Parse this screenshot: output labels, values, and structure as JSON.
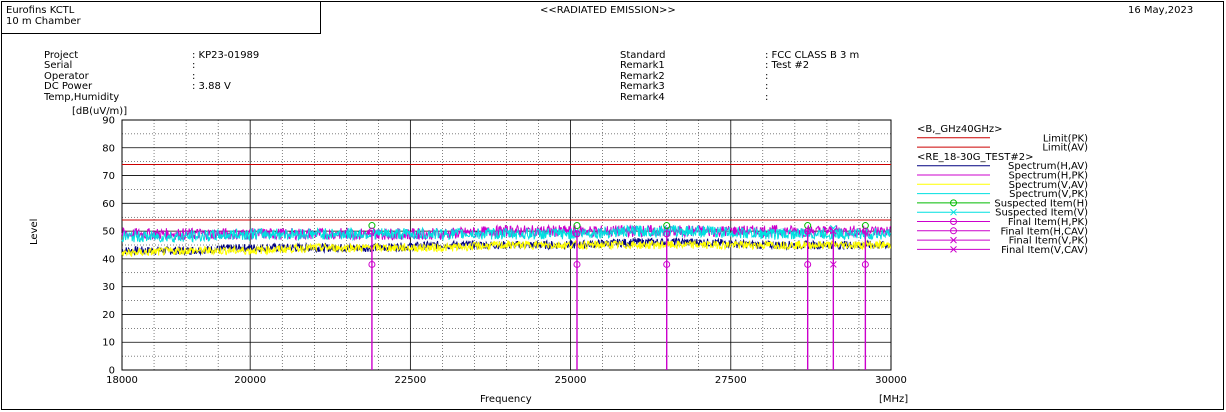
{
  "header": {
    "company": "Eurofins KCTL",
    "site": "10 m Chamber",
    "title": "<<RADIATED EMISSION>>",
    "date": "16 May,2023"
  },
  "info": {
    "left": [
      {
        "label": "Project",
        "value": ": KP23-01989"
      },
      {
        "label": "Serial",
        "value": ":"
      },
      {
        "label": "Operator",
        "value": ":"
      },
      {
        "label": "DC Power",
        "value": ": 3.88 V"
      },
      {
        "label": "Temp,Humidity",
        "value": ""
      }
    ],
    "right": [
      {
        "label": "Standard",
        "value": ": FCC CLASS B 3 m"
      },
      {
        "label": "Remark1",
        "value": ": Test #2"
      },
      {
        "label": "Remark2",
        "value": ":"
      },
      {
        "label": "Remark3",
        "value": ":"
      },
      {
        "label": "Remark4",
        "value": ":"
      }
    ]
  },
  "chart_data": {
    "type": "line",
    "ylabel": "Level",
    "yunit": "[dB(uV/m)]",
    "xlabel": "Frequency",
    "xunit": "[MHz]",
    "xlim": [
      18000,
      30000
    ],
    "ylim": [
      0,
      90
    ],
    "xticks": [
      18000,
      20000,
      22500,
      25000,
      27500,
      30000
    ],
    "yticks": [
      0,
      10,
      20,
      30,
      40,
      50,
      60,
      70,
      80,
      90
    ],
    "limits": [
      {
        "name": "Limit(PK)",
        "value": 74,
        "color": "#cc0000"
      },
      {
        "name": "Limit(AV)",
        "value": 54,
        "color": "#cc0000"
      }
    ],
    "legend_group1": "<B,_GHz40GHz>",
    "legend_group2": "<RE_18-30G_TEST#2>",
    "spectra": [
      {
        "name": "Spectrum(H,AV)",
        "color": "#000080",
        "points": [
          [
            18000,
            43
          ],
          [
            19000,
            43
          ],
          [
            20000,
            44
          ],
          [
            21000,
            44
          ],
          [
            22000,
            44
          ],
          [
            23000,
            45
          ],
          [
            24000,
            45
          ],
          [
            25000,
            45
          ],
          [
            26000,
            46
          ],
          [
            27000,
            46
          ],
          [
            28000,
            45
          ],
          [
            29000,
            45
          ],
          [
            30000,
            45
          ]
        ]
      },
      {
        "name": "Spectrum(H,PK)",
        "color": "#cc00cc",
        "points": [
          [
            18000,
            49
          ],
          [
            19000,
            49
          ],
          [
            20000,
            49
          ],
          [
            21000,
            49
          ],
          [
            22000,
            49
          ],
          [
            23000,
            49
          ],
          [
            24000,
            50
          ],
          [
            25000,
            50
          ],
          [
            26000,
            50
          ],
          [
            27000,
            50
          ],
          [
            28000,
            50
          ],
          [
            29000,
            50
          ],
          [
            30000,
            50
          ]
        ]
      },
      {
        "name": "Spectrum(V,AV)",
        "color": "#ffff00",
        "points": [
          [
            18000,
            42
          ],
          [
            19000,
            43
          ],
          [
            20000,
            43
          ],
          [
            21000,
            44
          ],
          [
            22000,
            44
          ],
          [
            23000,
            44
          ],
          [
            24000,
            45
          ],
          [
            25000,
            45
          ],
          [
            26000,
            45
          ],
          [
            27000,
            45
          ],
          [
            28000,
            45
          ],
          [
            29000,
            45
          ],
          [
            30000,
            45
          ]
        ]
      },
      {
        "name": "Spectrum(V,PK)",
        "color": "#00e0e0",
        "points": [
          [
            18000,
            48
          ],
          [
            19000,
            48
          ],
          [
            20000,
            49
          ],
          [
            21000,
            49
          ],
          [
            22000,
            49
          ],
          [
            23000,
            49
          ],
          [
            24000,
            49
          ],
          [
            25000,
            49
          ],
          [
            26000,
            50
          ],
          [
            27000,
            50
          ],
          [
            28000,
            49
          ],
          [
            29000,
            49
          ],
          [
            30000,
            49
          ]
        ]
      }
    ],
    "spikes": [
      21900,
      25100,
      26500,
      28700,
      29100,
      29600
    ],
    "markers": [
      {
        "name": "Suspected Item(H)",
        "color": "#00bb00",
        "shape": "circle",
        "points": [
          [
            21900,
            52
          ],
          [
            25100,
            52
          ],
          [
            26500,
            52
          ],
          [
            28700,
            52
          ],
          [
            29600,
            52
          ]
        ]
      },
      {
        "name": "Suspected Item(V)",
        "color": "#00e0e0",
        "shape": "x",
        "points": [
          [
            29100,
            51
          ]
        ]
      },
      {
        "name": "Final Item(H,PK)",
        "color": "#cc00cc",
        "shape": "circle",
        "points": [
          [
            21900,
            50
          ],
          [
            25100,
            49
          ],
          [
            26500,
            49
          ],
          [
            28700,
            50
          ],
          [
            29600,
            50
          ]
        ]
      },
      {
        "name": "Final Item(H,CAV)",
        "color": "#cc00cc",
        "shape": "circle",
        "points": [
          [
            21900,
            38
          ],
          [
            25100,
            38
          ],
          [
            26500,
            38
          ],
          [
            28700,
            38
          ],
          [
            29600,
            38
          ]
        ]
      },
      {
        "name": "Final Item(V,PK)",
        "color": "#cc00cc",
        "shape": "x",
        "points": [
          [
            29100,
            50
          ]
        ]
      },
      {
        "name": "Final Item(V,CAV)",
        "color": "#cc00cc",
        "shape": "x",
        "points": [
          [
            29100,
            38
          ]
        ]
      }
    ]
  }
}
